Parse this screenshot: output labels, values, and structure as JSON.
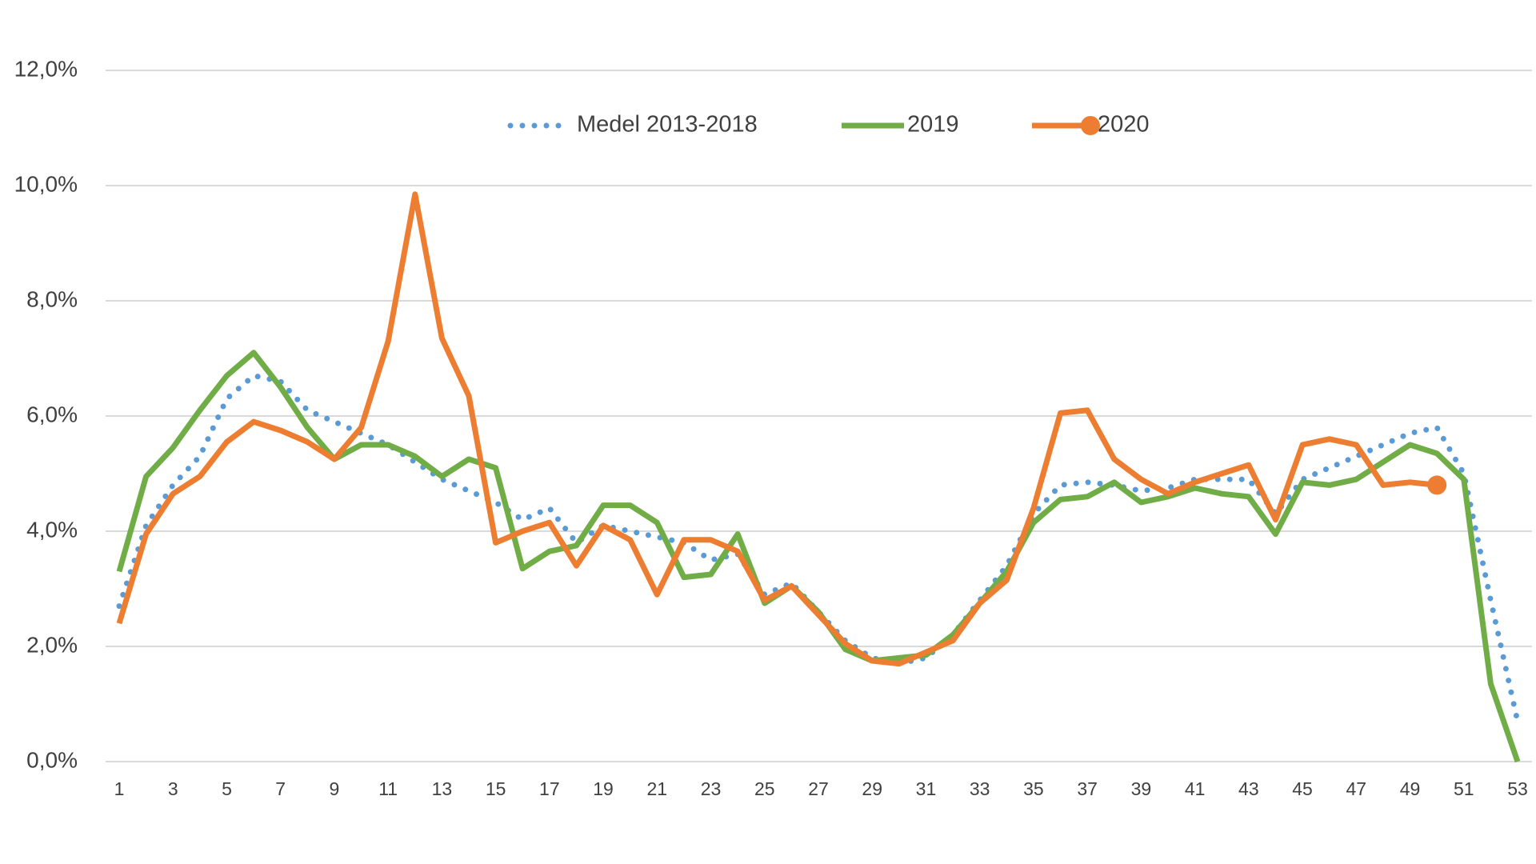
{
  "chart_data": {
    "type": "line",
    "categories": [
      1,
      null,
      3,
      null,
      5,
      null,
      7,
      null,
      9,
      null,
      11,
      null,
      13,
      null,
      15,
      null,
      17,
      null,
      19,
      null,
      21,
      null,
      23,
      null,
      25,
      null,
      27,
      null,
      29,
      null,
      31,
      null,
      33,
      null,
      35,
      null,
      37,
      null,
      39,
      null,
      41,
      null,
      43,
      null,
      45,
      null,
      47,
      null,
      49,
      null,
      51,
      null,
      53
    ],
    "series": [
      {
        "name": "Medel 2013-2018",
        "color": "#5b9bd5",
        "line_style": "dotted",
        "values": [
          2.7,
          4.1,
          4.8,
          5.3,
          6.3,
          6.7,
          6.6,
          6.1,
          5.9,
          5.7,
          5.5,
          5.2,
          4.9,
          4.7,
          4.5,
          4.2,
          4.4,
          3.8,
          4.1,
          4.0,
          3.9,
          3.8,
          3.5,
          3.6,
          2.9,
          3.1,
          2.6,
          2.1,
          1.8,
          1.7,
          1.8,
          2.2,
          2.8,
          3.4,
          4.3,
          4.8,
          4.85,
          4.8,
          4.7,
          4.75,
          4.9,
          4.9,
          4.9,
          4.3,
          4.9,
          5.1,
          5.3,
          5.5,
          5.7,
          5.8,
          5.0,
          2.8,
          0.7
        ]
      },
      {
        "name": "2019",
        "color": "#70ad47",
        "line_style": "solid",
        "values": [
          3.3,
          4.95,
          5.45,
          6.1,
          6.7,
          7.1,
          6.5,
          5.8,
          5.25,
          5.5,
          5.5,
          5.3,
          4.95,
          5.25,
          5.1,
          3.35,
          3.65,
          3.75,
          4.45,
          4.45,
          4.15,
          3.2,
          3.25,
          3.95,
          2.75,
          3.05,
          2.6,
          1.95,
          1.75,
          1.8,
          1.85,
          2.2,
          2.75,
          3.3,
          4.15,
          4.55,
          4.6,
          4.85,
          4.5,
          4.6,
          4.75,
          4.65,
          4.6,
          3.95,
          4.85,
          4.8,
          4.9,
          5.2,
          5.5,
          5.35,
          4.9,
          1.35,
          0
        ]
      },
      {
        "name": "2020",
        "color": "#ed7d31",
        "line_style": "solid",
        "end_marker": true,
        "values": [
          2.4,
          3.95,
          4.65,
          4.95,
          5.55,
          5.9,
          5.75,
          5.55,
          5.25,
          5.8,
          7.3,
          9.85,
          7.35,
          6.35,
          3.8,
          4.0,
          4.15,
          3.4,
          4.1,
          3.85,
          2.9,
          3.85,
          3.85,
          3.65,
          2.8,
          3.05,
          2.55,
          2.05,
          1.75,
          1.7,
          1.9,
          2.1,
          2.75,
          3.15,
          4.4,
          6.05,
          6.1,
          5.25,
          4.9,
          4.65,
          4.85,
          5.0,
          5.15,
          4.2,
          5.5,
          5.6,
          5.5,
          4.8,
          4.85,
          4.8,
          null,
          null,
          null
        ]
      }
    ],
    "ylim": [
      0,
      12
    ],
    "yticks": [
      {
        "value": 0,
        "label": "0,0%"
      },
      {
        "value": 2,
        "label": "2,0%"
      },
      {
        "value": 4,
        "label": "4,0%"
      },
      {
        "value": 6,
        "label": "6,0%"
      },
      {
        "value": 8,
        "label": "8,0%"
      },
      {
        "value": 10,
        "label": "10,0%"
      },
      {
        "value": 12,
        "label": "12,0%"
      }
    ],
    "grid": true,
    "legend": "top"
  }
}
